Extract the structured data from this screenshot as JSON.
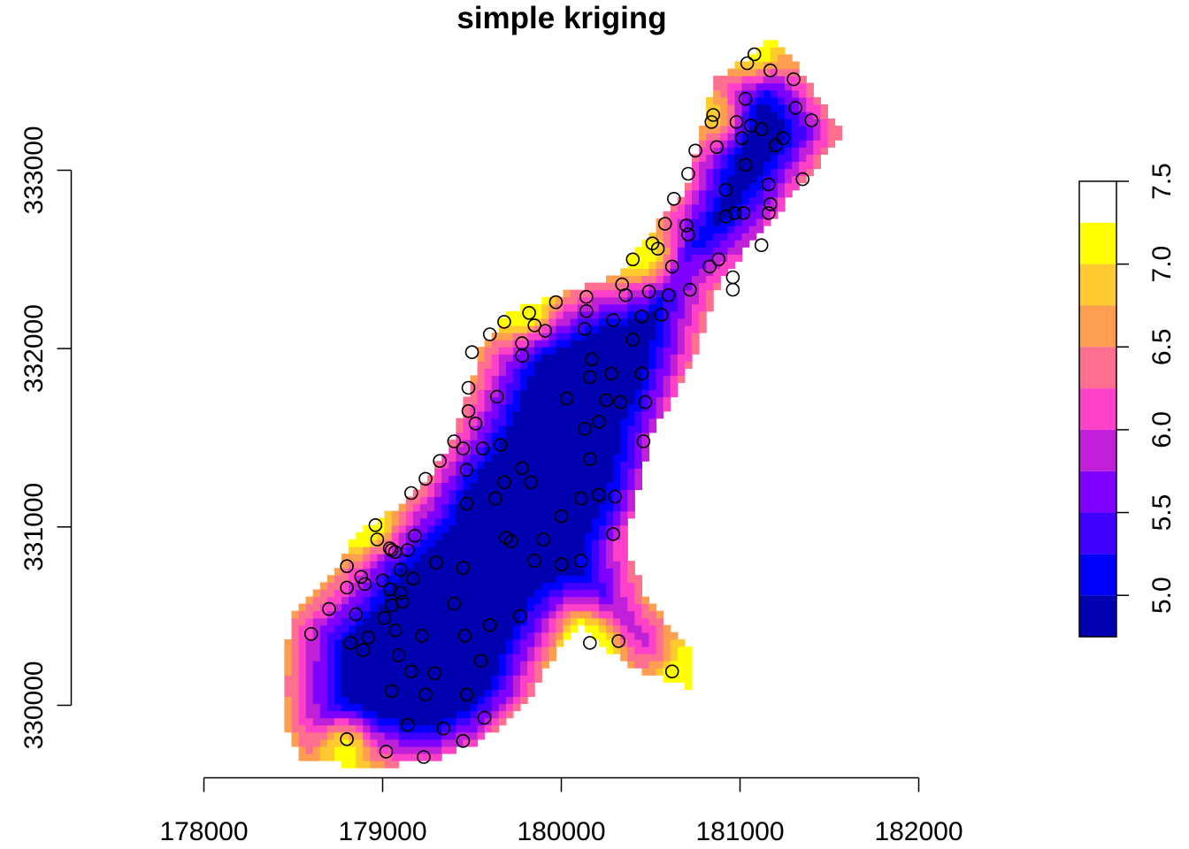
{
  "chart_data": {
    "type": "heatmap",
    "title": "simple kriging",
    "xlabel": "",
    "ylabel": "",
    "xlim": [
      177950,
      182400
    ],
    "ylim": [
      329400,
      333800
    ],
    "x_ticks": [
      178000,
      179000,
      180000,
      181000,
      182000
    ],
    "y_ticks": [
      330000,
      331000,
      332000,
      333000
    ],
    "x_tick_labels": [
      "178000",
      "179000",
      "180000",
      "181000",
      "182000"
    ],
    "y_tick_labels": [
      "330000",
      "331000",
      "332000",
      "333000"
    ],
    "legend": {
      "placement": "right",
      "breaks": [
        4.75,
        5.0,
        5.25,
        5.5,
        5.75,
        6.0,
        6.25,
        6.5,
        6.75,
        7.0,
        7.25,
        7.5
      ],
      "colors": [
        "#0000B0",
        "#0000FF",
        "#4000FF",
        "#8000FF",
        "#C020D8",
        "#FF40C8",
        "#FF7090",
        "#FF9E50",
        "#FFCA30",
        "#FFFF00"
      ],
      "tick_values": [
        5.0,
        5.5,
        6.0,
        6.5,
        7.0,
        7.5
      ],
      "tick_labels": [
        "5.0",
        "5.5",
        "6.0",
        "6.5",
        "7.0",
        "7.5"
      ]
    },
    "grid": false,
    "cell_size": 40,
    "domain_outline": [
      [
        178450,
        330150
      ],
      [
        178480,
        330500
      ],
      [
        178700,
        330700
      ],
      [
        178850,
        330950
      ],
      [
        179200,
        331200
      ],
      [
        179400,
        331500
      ],
      [
        179550,
        332000
      ],
      [
        179700,
        332200
      ],
      [
        180300,
        332400
      ],
      [
        180700,
        332900
      ],
      [
        180850,
        333500
      ],
      [
        181200,
        333750
      ],
      [
        181580,
        333200
      ],
      [
        180900,
        332400
      ],
      [
        180750,
        331950
      ],
      [
        180500,
        331500
      ],
      [
        180350,
        330900
      ],
      [
        180480,
        330600
      ],
      [
        180720,
        330300
      ],
      [
        180730,
        330100
      ],
      [
        180400,
        330200
      ],
      [
        180100,
        330450
      ],
      [
        179900,
        330200
      ],
      [
        179800,
        330000
      ],
      [
        179550,
        329800
      ],
      [
        179300,
        329700
      ],
      [
        178950,
        329650
      ],
      [
        178550,
        329700
      ],
      [
        178450,
        329900
      ]
    ],
    "low_centers": [
      [
        180400,
        331400
      ],
      [
        180100,
        331100
      ],
      [
        179600,
        331200
      ],
      [
        179400,
        330300
      ],
      [
        180300,
        331900
      ],
      [
        181000,
        332700
      ],
      [
        181050,
        333300
      ],
      [
        179300,
        330000
      ]
    ],
    "high_centers": [
      [
        180150,
        330350
      ],
      [
        179800,
        332200
      ],
      [
        180500,
        332500
      ],
      [
        180900,
        333300
      ],
      [
        181100,
        333650
      ],
      [
        178900,
        331000
      ],
      [
        178800,
        329800
      ],
      [
        180700,
        330200
      ]
    ],
    "points": [
      [
        181080,
        333650
      ],
      [
        181040,
        333600
      ],
      [
        181170,
        333560
      ],
      [
        181300,
        333510
      ],
      [
        180850,
        333310
      ],
      [
        181030,
        333400
      ],
      [
        181310,
        333350
      ],
      [
        181400,
        333280
      ],
      [
        180840,
        333270
      ],
      [
        180980,
        333270
      ],
      [
        181060,
        333250
      ],
      [
        181120,
        333230
      ],
      [
        181010,
        333180
      ],
      [
        181240,
        333180
      ],
      [
        180750,
        333110
      ],
      [
        180870,
        333130
      ],
      [
        181200,
        333140
      ],
      [
        181030,
        333030
      ],
      [
        180710,
        332980
      ],
      [
        180630,
        332840
      ],
      [
        180580,
        332700
      ],
      [
        180700,
        332690
      ],
      [
        180710,
        332640
      ],
      [
        181160,
        332920
      ],
      [
        181350,
        332950
      ],
      [
        180920,
        332890
      ],
      [
        181170,
        332810
      ],
      [
        181160,
        332760
      ],
      [
        180970,
        332760
      ],
      [
        181020,
        332760
      ],
      [
        180920,
        332740
      ],
      [
        181120,
        332580
      ],
      [
        180510,
        332590
      ],
      [
        180540,
        332560
      ],
      [
        180400,
        332500
      ],
      [
        180880,
        332500
      ],
      [
        180830,
        332460
      ],
      [
        180620,
        332460
      ],
      [
        180960,
        332400
      ],
      [
        180960,
        332330
      ],
      [
        180600,
        332300
      ],
      [
        180340,
        332360
      ],
      [
        180720,
        332330
      ],
      [
        180490,
        332320
      ],
      [
        180360,
        332300
      ],
      [
        180450,
        332180
      ],
      [
        180560,
        332190
      ],
      [
        180140,
        332290
      ],
      [
        180140,
        332210
      ],
      [
        179970,
        332260
      ],
      [
        179820,
        332200
      ],
      [
        179680,
        332150
      ],
      [
        179850,
        332130
      ],
      [
        179910,
        332100
      ],
      [
        180290,
        332160
      ],
      [
        180130,
        332110
      ],
      [
        179600,
        332080
      ],
      [
        179780,
        332030
      ],
      [
        180400,
        332050
      ],
      [
        179500,
        331980
      ],
      [
        179780,
        331960
      ],
      [
        180170,
        331940
      ],
      [
        180280,
        331860
      ],
      [
        180450,
        331860
      ],
      [
        180160,
        331840
      ],
      [
        179480,
        331780
      ],
      [
        179640,
        331730
      ],
      [
        180030,
        331720
      ],
      [
        180250,
        331710
      ],
      [
        180330,
        331700
      ],
      [
        180470,
        331700
      ],
      [
        179480,
        331650
      ],
      [
        179520,
        331580
      ],
      [
        180210,
        331590
      ],
      [
        180130,
        331550
      ],
      [
        179400,
        331480
      ],
      [
        179450,
        331440
      ],
      [
        179560,
        331440
      ],
      [
        180460,
        331480
      ],
      [
        179660,
        331460
      ],
      [
        179320,
        331370
      ],
      [
        179470,
        331320
      ],
      [
        179780,
        331330
      ],
      [
        180160,
        331380
      ],
      [
        179240,
        331270
      ],
      [
        179680,
        331250
      ],
      [
        179830,
        331250
      ],
      [
        179160,
        331190
      ],
      [
        180210,
        331180
      ],
      [
        180300,
        331170
      ],
      [
        179630,
        331160
      ],
      [
        180110,
        331160
      ],
      [
        179470,
        331130
      ],
      [
        178960,
        331010
      ],
      [
        180000,
        331060
      ],
      [
        179180,
        330950
      ],
      [
        179690,
        330940
      ],
      [
        179900,
        330930
      ],
      [
        178970,
        330930
      ],
      [
        179040,
        330880
      ],
      [
        179070,
        330860
      ],
      [
        179140,
        330870
      ],
      [
        179720,
        330920
      ],
      [
        179050,
        330870
      ],
      [
        180290,
        330960
      ],
      [
        179300,
        330800
      ],
      [
        179850,
        330810
      ],
      [
        180110,
        330810
      ],
      [
        180000,
        330790
      ],
      [
        178800,
        330780
      ],
      [
        179100,
        330760
      ],
      [
        178880,
        330720
      ],
      [
        179000,
        330700
      ],
      [
        179170,
        330710
      ],
      [
        179450,
        330770
      ],
      [
        178900,
        330680
      ],
      [
        179040,
        330650
      ],
      [
        179100,
        330630
      ],
      [
        179110,
        330580
      ],
      [
        178800,
        330660
      ],
      [
        179050,
        330560
      ],
      [
        178700,
        330540
      ],
      [
        179400,
        330570
      ],
      [
        178850,
        330510
      ],
      [
        179010,
        330490
      ],
      [
        179600,
        330450
      ],
      [
        179770,
        330500
      ],
      [
        178600,
        330400
      ],
      [
        179070,
        330420
      ],
      [
        178920,
        330380
      ],
      [
        179220,
        330390
      ],
      [
        179460,
        330390
      ],
      [
        180160,
        330350
      ],
      [
        180320,
        330360
      ],
      [
        178820,
        330350
      ],
      [
        178890,
        330310
      ],
      [
        179090,
        330280
      ],
      [
        179550,
        330250
      ],
      [
        179160,
        330190
      ],
      [
        179290,
        330180
      ],
      [
        180620,
        330190
      ],
      [
        179050,
        330080
      ],
      [
        179240,
        330060
      ],
      [
        179470,
        330060
      ],
      [
        179570,
        329930
      ],
      [
        179140,
        329890
      ],
      [
        179340,
        329870
      ],
      [
        179450,
        329800
      ],
      [
        178800,
        329810
      ],
      [
        179020,
        329740
      ],
      [
        179230,
        329710
      ]
    ]
  }
}
